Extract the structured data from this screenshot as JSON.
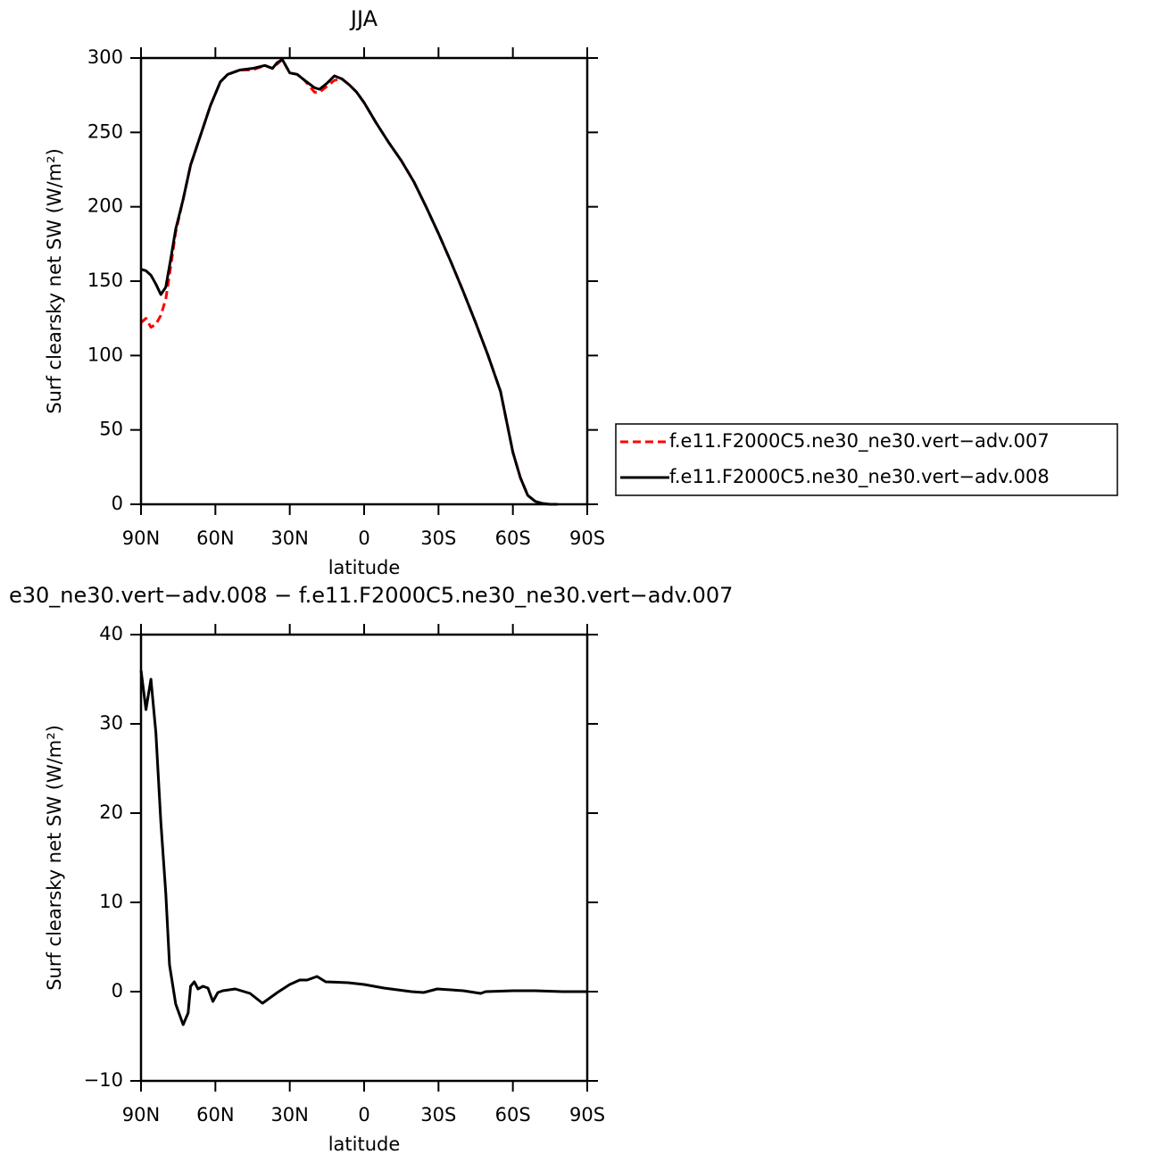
{
  "chart_data": [
    {
      "type": "line",
      "title": "JJA",
      "xlabel": "latitude",
      "ylabel": "Surf clearsky net SW (W/m²)",
      "x": [
        90,
        88,
        86,
        84,
        82,
        80,
        78,
        76,
        73,
        70,
        66,
        62,
        58,
        55,
        50,
        45,
        40,
        37,
        35,
        33,
        30,
        27,
        24,
        20,
        18,
        15,
        12,
        9,
        6,
        3,
        0,
        -5,
        -10,
        -15,
        -20,
        -25,
        -30,
        -35,
        -40,
        -45,
        -50,
        -55,
        -60,
        -63,
        -66,
        -69,
        -72,
        -75,
        -78
      ],
      "series": [
        {
          "name": "f.e11.F2000C5.ne30_ne30.vert−adv.007",
          "color": "#ff0000",
          "linestyle": "dashed",
          "values": [
            122,
            125,
            119,
            121,
            127,
            138,
            160,
            183,
            205,
            228,
            248,
            268,
            284,
            289,
            292,
            292,
            295,
            293,
            296,
            299,
            290,
            289,
            285,
            277,
            277,
            281,
            285,
            286,
            282,
            277,
            270,
            256,
            243,
            231,
            217,
            200,
            182,
            163,
            143,
            122,
            100,
            76,
            35,
            18,
            6,
            2,
            0.5,
            0,
            0
          ]
        },
        {
          "name": "f.e11.F2000C5.ne30_ne30.vert−adv.008",
          "color": "#000000",
          "linestyle": "solid",
          "values": [
            158,
            157,
            154,
            148,
            141,
            146,
            165,
            185,
            205,
            228,
            248,
            268,
            284,
            289,
            292,
            293,
            295,
            293,
            297,
            299,
            290,
            289,
            285,
            280,
            279,
            283,
            288,
            286,
            282,
            277,
            270,
            256,
            243,
            231,
            217,
            200,
            182,
            163,
            143,
            122,
            100,
            76,
            35,
            18,
            6,
            2,
            0.5,
            0,
            0
          ]
        }
      ],
      "xlim": [
        90,
        -90
      ],
      "xticks": [
        {
          "value": 90,
          "label": "90N"
        },
        {
          "value": 60,
          "label": "60N"
        },
        {
          "value": 30,
          "label": "30N"
        },
        0,
        {
          "value": -30,
          "label": "30S"
        },
        {
          "value": -60,
          "label": "60S"
        },
        {
          "value": -90,
          "label": "90S"
        }
      ],
      "ylim": [
        0,
        300
      ],
      "yticks": [
        0,
        50,
        100,
        150,
        200,
        250,
        300
      ]
    },
    {
      "type": "line",
      "title": "e30_ne30.vert−adv.008 − f.e11.F2000C5.ne30_ne30.vert−adv.007",
      "xlabel": "latitude",
      "ylabel": "Surf clearsky net SW (W/m²)",
      "x": [
        90,
        88,
        86,
        84,
        82,
        80,
        78.5,
        76,
        73,
        71,
        70,
        68.5,
        67,
        65,
        63,
        61,
        59,
        57,
        52,
        46,
        41,
        35,
        30,
        26,
        23,
        19,
        15.5,
        6.5,
        0,
        -8,
        -19,
        -24,
        -29.5,
        -40,
        -47,
        -49,
        -60,
        -69,
        -80,
        -90
      ],
      "values": [
        36,
        31.6,
        35,
        29,
        19,
        11,
        3,
        -1.4,
        -3.7,
        -2.4,
        0.6,
        1.1,
        0.3,
        0.6,
        0.4,
        -1.1,
        -0.1,
        0.1,
        0.3,
        -0.2,
        -1.3,
        -0.1,
        0.8,
        1.3,
        1.3,
        1.7,
        1.1,
        1.0,
        0.8,
        0.4,
        0,
        -0.1,
        0.3,
        0.1,
        -0.2,
        0,
        0.1,
        0.1,
        0,
        0
      ],
      "color": "#000000",
      "xlim": [
        90,
        -90
      ],
      "xticks": [
        {
          "value": 90,
          "label": "90N"
        },
        {
          "value": 60,
          "label": "60N"
        },
        {
          "value": 30,
          "label": "30N"
        },
        0,
        {
          "value": -30,
          "label": "30S"
        },
        {
          "value": -60,
          "label": "60S"
        },
        {
          "value": -90,
          "label": "90S"
        }
      ],
      "ylim": [
        -10,
        40
      ],
      "yticks": [
        {
          "value": -10,
          "label": "−10"
        },
        0,
        10,
        20,
        30,
        40
      ]
    }
  ]
}
